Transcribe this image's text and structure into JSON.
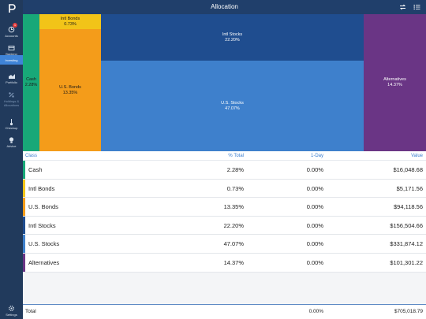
{
  "app": {
    "title": "Allocation"
  },
  "sidebar": {
    "items": [
      {
        "label": "Accounts",
        "icon": "accounts-icon",
        "badge": "1"
      },
      {
        "label": "Banking",
        "icon": "banking-icon"
      },
      {
        "label": "Investing",
        "icon": "none"
      },
      {
        "label": "Portfolio",
        "icon": "portfolio-icon"
      },
      {
        "label": "Holdings & Allocations",
        "icon": "holdings-icon"
      },
      {
        "label": "Checkup",
        "icon": "checkup-icon"
      },
      {
        "label": "Advice",
        "icon": "advice-icon"
      }
    ],
    "settings_label": "Settings"
  },
  "toolbar": {
    "left_icon": "swap-icon",
    "right_icon": "list-icon"
  },
  "treemap": {
    "tiles": [
      {
        "name": "Cash",
        "pct": "2.28%",
        "color": "#18a878",
        "text_color": "#1a1a1a"
      },
      {
        "name": "Intl Bonds",
        "pct": "0.73%",
        "color": "#f2c418",
        "text_color": "#1a1a1a"
      },
      {
        "name": "U.S. Bonds",
        "pct": "13.35%",
        "color": "#f49c1a",
        "text_color": "#1a1a1a"
      },
      {
        "name": "Intl Stocks",
        "pct": "22.20%",
        "color": "#1f4d8f",
        "text_color": "#ffffff"
      },
      {
        "name": "U.S. Stocks",
        "pct": "47.07%",
        "color": "#3e80cc",
        "text_color": "#ffffff"
      },
      {
        "name": "Alternatives",
        "pct": "14.37%",
        "color": "#6a3585",
        "text_color": "#ffffff"
      }
    ]
  },
  "table": {
    "headers": {
      "class": "Class",
      "pct": "% Total",
      "day": "1-Day",
      "value": "Value"
    },
    "rows": [
      {
        "name": "Cash",
        "pct": "2.28%",
        "day": "0.00%",
        "value": "$16,048.68",
        "color": "#18a878"
      },
      {
        "name": "Intl Bonds",
        "pct": "0.73%",
        "day": "0.00%",
        "value": "$5,171.56",
        "color": "#f2c418"
      },
      {
        "name": "U.S. Bonds",
        "pct": "13.35%",
        "day": "0.00%",
        "value": "$94,118.56",
        "color": "#f49c1a"
      },
      {
        "name": "Intl Stocks",
        "pct": "22.20%",
        "day": "0.00%",
        "value": "$156,504.66",
        "color": "#1f4d8f"
      },
      {
        "name": "U.S. Stocks",
        "pct": "47.07%",
        "day": "0.00%",
        "value": "$331,874.12",
        "color": "#3e80cc"
      },
      {
        "name": "Alternatives",
        "pct": "14.37%",
        "day": "0.00%",
        "value": "$101,301.22",
        "color": "#6a3585"
      }
    ],
    "total": {
      "label": "Total",
      "day": "0.00%",
      "value": "$705,018.79"
    }
  }
}
